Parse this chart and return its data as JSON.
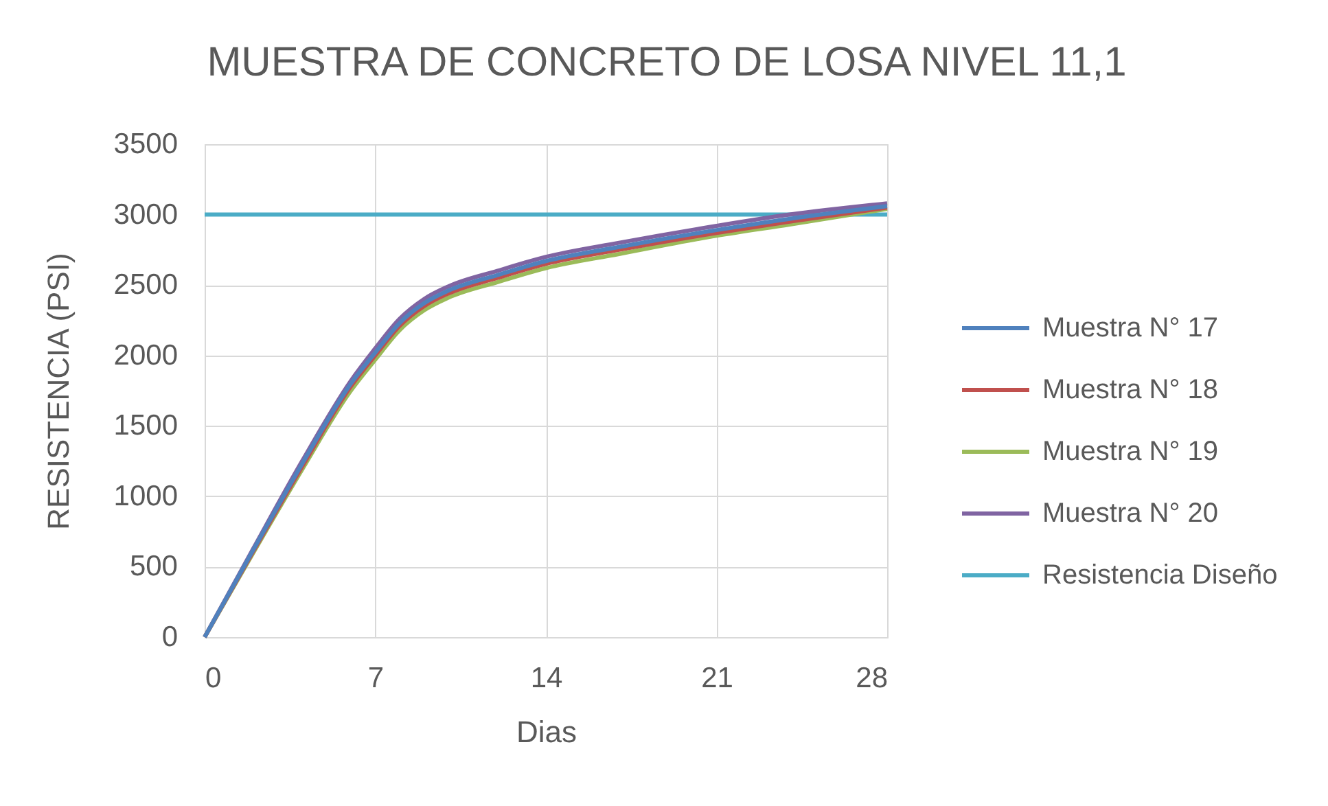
{
  "chart_data": {
    "type": "line",
    "title": "MUESTRA DE CONCRETO DE LOSA NIVEL 11,1",
    "xlabel": "Dias",
    "ylabel": "RESISTENCIA (PSI)",
    "xlim": [
      0,
      28
    ],
    "xticks": [
      0,
      7,
      14,
      21,
      28
    ],
    "ylim": [
      0,
      3500
    ],
    "yticks": [
      0,
      500,
      1000,
      1500,
      2000,
      2500,
      3000,
      3500
    ],
    "grid": true,
    "legend": "right",
    "line_style": "solid",
    "series": [
      {
        "name": "Muestra N° 17",
        "color": "#4f81bd",
        "x": [
          0,
          2,
          4,
          6,
          7,
          8,
          9,
          10,
          12,
          14,
          17,
          21,
          24,
          28
        ],
        "values": [
          0,
          620,
          1230,
          1800,
          2020,
          2230,
          2370,
          2460,
          2570,
          2670,
          2770,
          2890,
          2970,
          3060
        ]
      },
      {
        "name": "Muestra N° 18",
        "color": "#c0504d",
        "x": [
          0,
          2,
          4,
          6,
          7,
          8,
          9,
          10,
          12,
          14,
          17,
          21,
          24,
          28
        ],
        "values": [
          0,
          610,
          1210,
          1780,
          2000,
          2210,
          2350,
          2440,
          2550,
          2650,
          2750,
          2870,
          2950,
          3050
        ]
      },
      {
        "name": "Muestra N° 19",
        "color": "#9bbb59",
        "x": [
          0,
          2,
          4,
          6,
          7,
          8,
          9,
          10,
          12,
          14,
          17,
          21,
          24,
          28
        ],
        "values": [
          0,
          600,
          1190,
          1750,
          1970,
          2180,
          2320,
          2410,
          2520,
          2620,
          2720,
          2850,
          2930,
          3040
        ]
      },
      {
        "name": "Muestra N° 20",
        "color": "#8064a2",
        "x": [
          0,
          2,
          4,
          6,
          7,
          8,
          9,
          10,
          12,
          14,
          17,
          21,
          24,
          28
        ],
        "values": [
          0,
          630,
          1250,
          1820,
          2050,
          2260,
          2400,
          2490,
          2600,
          2700,
          2800,
          2920,
          3000,
          3080
        ]
      },
      {
        "name": "Resistencia Diseño",
        "color": "#4bacc6",
        "x": [
          0,
          28
        ],
        "values": [
          3000,
          3000
        ]
      }
    ]
  }
}
